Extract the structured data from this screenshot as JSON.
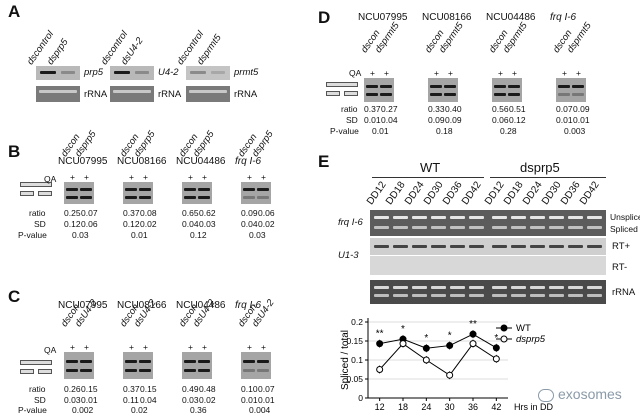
{
  "panels": {
    "A": {
      "letter": "A",
      "groups": [
        {
          "lanes": [
            "dscontrol",
            "dsprp5"
          ],
          "gene": "prp5",
          "ref": "rRNA"
        },
        {
          "lanes": [
            "dscontrol",
            "dsU4-2"
          ],
          "gene": "U4-2",
          "ref": "rRNA"
        },
        {
          "lanes": [
            "dscontrol",
            "dsprmt5"
          ],
          "gene": "prmt5",
          "ref": "rRNA"
        }
      ]
    },
    "B": {
      "letter": "B",
      "qa_label": "QA",
      "row_labels": {
        "ratio": "ratio",
        "sd": "SD",
        "p": "P-value"
      },
      "genes": [
        {
          "name": "NCU07995",
          "lanes": [
            "dscon",
            "dsprp5"
          ],
          "qa": [
            "+",
            "+"
          ],
          "ratio": [
            "0.25",
            "0.07"
          ],
          "sd": [
            "0.12",
            "0.06"
          ],
          "p": "0.03"
        },
        {
          "name": "NCU08166",
          "lanes": [
            "dscon",
            "dsprp5"
          ],
          "qa": [
            "+",
            "+"
          ],
          "ratio": [
            "0.37",
            "0.08"
          ],
          "sd": [
            "0.12",
            "0.02"
          ],
          "p": "0.01"
        },
        {
          "name": "NCU04486",
          "lanes": [
            "dscon",
            "dsprp5"
          ],
          "qa": [
            "+",
            "+"
          ],
          "ratio": [
            "0.65",
            "0.62"
          ],
          "sd": [
            "0.04",
            "0.03"
          ],
          "p": "0.12"
        },
        {
          "name": "frq I-6",
          "lanes": [
            "dscon",
            "dsprp5"
          ],
          "qa": [
            "+",
            "+"
          ],
          "ratio": [
            "0.09",
            "0.06"
          ],
          "sd": [
            "0.04",
            "0.02"
          ],
          "p": "0.03"
        }
      ]
    },
    "C": {
      "letter": "C",
      "qa_label": "QA",
      "row_labels": {
        "ratio": "ratio",
        "sd": "SD",
        "p": "P-value"
      },
      "genes": [
        {
          "name": "NCU07995",
          "lanes": [
            "dscon",
            "dsU4-2"
          ],
          "qa": [
            "+",
            "+"
          ],
          "ratio": [
            "0.26",
            "0.15"
          ],
          "sd": [
            "0.03",
            "0.01"
          ],
          "p": "0.002"
        },
        {
          "name": "NCU08166",
          "lanes": [
            "dscon",
            "dsU4-2"
          ],
          "qa": [
            "+",
            "+"
          ],
          "ratio": [
            "0.37",
            "0.15"
          ],
          "sd": [
            "0.11",
            "0.04"
          ],
          "p": "0.02"
        },
        {
          "name": "NCU04486",
          "lanes": [
            "dscon",
            "dsU4-2"
          ],
          "qa": [
            "+",
            "+"
          ],
          "ratio": [
            "0.49",
            "0.48"
          ],
          "sd": [
            "0.03",
            "0.02"
          ],
          "p": "0.36"
        },
        {
          "name": "frq I-6",
          "lanes": [
            "dscon",
            "dsU4-2"
          ],
          "qa": [
            "+",
            "+"
          ],
          "ratio": [
            "0.10",
            "0.07"
          ],
          "sd": [
            "0.01",
            "0.01"
          ],
          "p": "0.004"
        }
      ]
    },
    "D": {
      "letter": "D",
      "qa_label": "QA",
      "row_labels": {
        "ratio": "ratio",
        "sd": "SD",
        "p": "P-value"
      },
      "genes": [
        {
          "name": "NCU07995",
          "lanes": [
            "dscon",
            "dsprmt5"
          ],
          "qa": [
            "+",
            "+"
          ],
          "ratio": [
            "0.37",
            "0.27"
          ],
          "sd": [
            "0.01",
            "0.04"
          ],
          "p": "0.01"
        },
        {
          "name": "NCU08166",
          "lanes": [
            "dscon",
            "dsprmt5"
          ],
          "qa": [
            "+",
            "+"
          ],
          "ratio": [
            "0.33",
            "0.40"
          ],
          "sd": [
            "0.09",
            "0.09"
          ],
          "p": "0.18"
        },
        {
          "name": "NCU04486",
          "lanes": [
            "dscon",
            "dsprmt5"
          ],
          "qa": [
            "+",
            "+"
          ],
          "ratio": [
            "0.56",
            "0.51"
          ],
          "sd": [
            "0.06",
            "0.12"
          ],
          "p": "0.28"
        },
        {
          "name": "frq I-6",
          "lanes": [
            "dscon",
            "dsprmt5"
          ],
          "qa": [
            "+",
            "+"
          ],
          "ratio": [
            "0.07",
            "0.09"
          ],
          "sd": [
            "0.01",
            "0.01"
          ],
          "p": "0.003"
        }
      ]
    },
    "E": {
      "letter": "E",
      "wt_label": "WT",
      "mut_label": "dsprp5",
      "dd_lanes": [
        "DD12",
        "DD18",
        "DD24",
        "DD30",
        "DD36",
        "DD42"
      ],
      "row_labels": {
        "frq": "frq I-6",
        "u13": "U1-3",
        "unspliced": "Unspliced",
        "spliced": "Spliced",
        "rtplus": "RT+",
        "rtminus": "RT-",
        "rrna": "rRNA"
      }
    }
  },
  "chart_data": {
    "type": "line",
    "ylabel": "Spliced / total",
    "xlabel": "Hrs in DD",
    "x": [
      12,
      18,
      24,
      30,
      36,
      42
    ],
    "xticks": [
      "12",
      "18",
      "24",
      "30",
      "36",
      "42"
    ],
    "yticks": [
      "0",
      "0.05",
      "0.1",
      "0.15",
      "0.2"
    ],
    "ylim": [
      0,
      0.2
    ],
    "grid": true,
    "legend_position": "top-right",
    "significance": [
      "**",
      "*",
      "*",
      "*",
      "**",
      "*"
    ],
    "series": [
      {
        "name": "WT",
        "marker": "filled",
        "values": [
          0.143,
          0.155,
          0.131,
          0.138,
          0.168,
          0.132
        ]
      },
      {
        "name": "dsprp5",
        "marker": "open",
        "values": [
          0.075,
          0.143,
          0.1,
          0.06,
          0.143,
          0.103
        ]
      }
    ]
  },
  "watermark": "exosomes"
}
